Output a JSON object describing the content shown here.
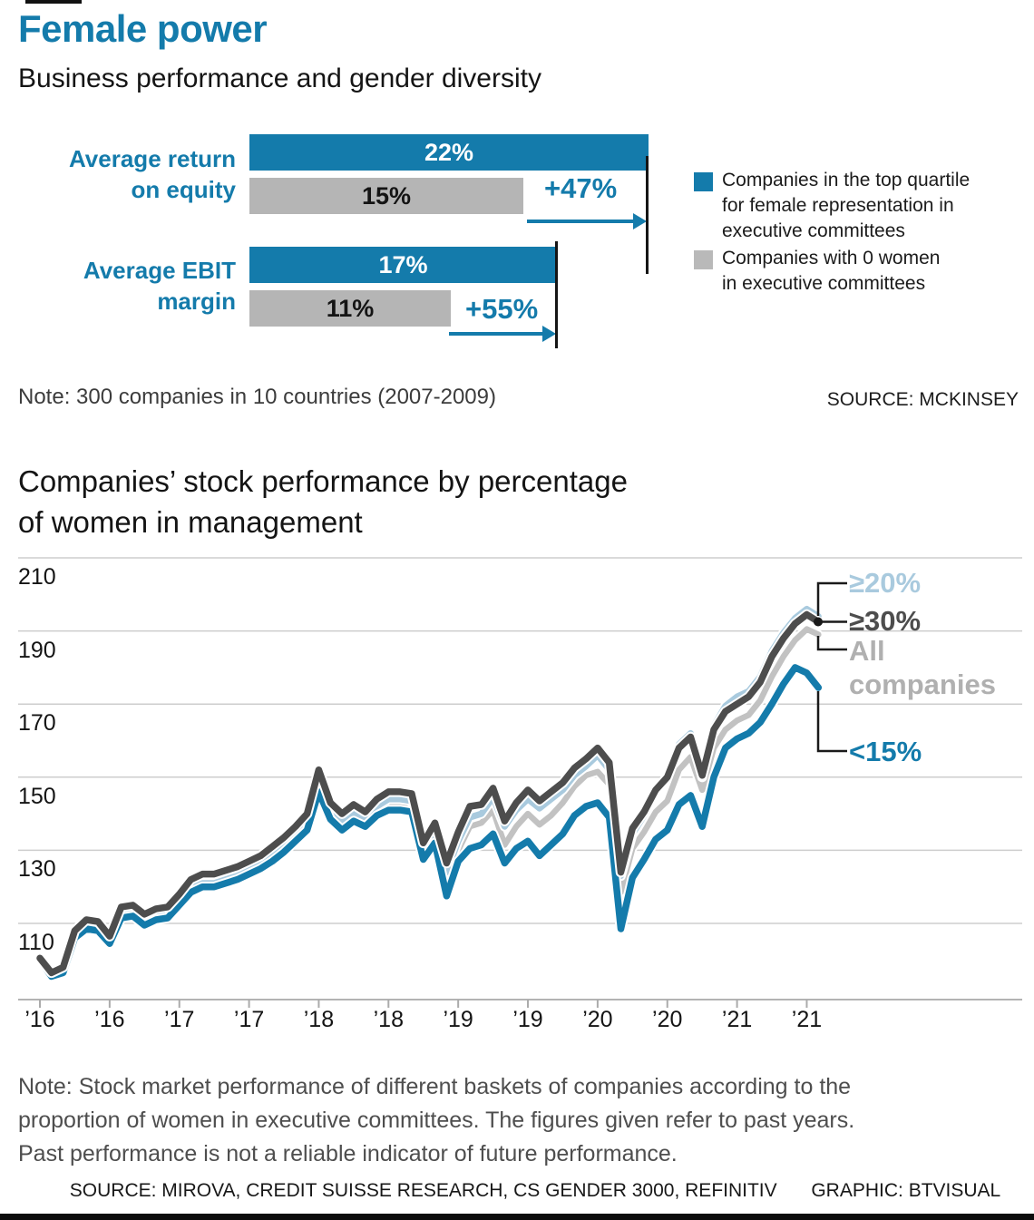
{
  "header": {
    "title": "Female power",
    "subtitle": "Business performance and gender diversity"
  },
  "bar_chart": {
    "rows": [
      {
        "label_lines": [
          "Average return",
          "on equity"
        ],
        "top_value_label": "22%",
        "zero_value_label": "15%",
        "delta_label": "+47%"
      },
      {
        "label_lines": [
          "Average EBIT",
          "margin"
        ],
        "top_value_label": "17%",
        "zero_value_label": "11%",
        "delta_label": "+55%"
      }
    ],
    "legend": [
      {
        "color": "#147bab",
        "lines": [
          "Companies in the top quartile",
          "for female representation in",
          "executive committees"
        ]
      },
      {
        "color": "#b9b9b9",
        "lines": [
          "Companies with 0 women",
          "in executive committees"
        ]
      }
    ],
    "note": "Note: 300 companies in 10 countries (2007-2009)",
    "source": "SOURCE: MCKINSEY"
  },
  "line_chart": {
    "title_lines": [
      "Companies’ stock performance by percentage",
      "of women in management"
    ],
    "y_tick_labels": [
      "210",
      "190",
      "170",
      "150",
      "130",
      "110"
    ],
    "series_labels": [
      {
        "text": "≥20%",
        "color": "#a9cade"
      },
      {
        "text": "≥30%",
        "color": "#4d4d4d"
      },
      {
        "text_lines": [
          "All",
          "companies"
        ],
        "color": "#b0b0b0"
      },
      {
        "text": "<15%",
        "color": "#147bab"
      }
    ]
  },
  "footer": {
    "note_lines": [
      "Note: Stock market performance of different baskets of companies according to the",
      "proportion of women in executive committees. The figures given refer to past years.",
      "Past performance is not a reliable indicator of future performance."
    ],
    "source": "SOURCE: MIROVA, CREDIT SUISSE RESEARCH, CS GENDER 3000, REFINITIV",
    "graphic": "GRAPHIC: BTVISUAL"
  },
  "chart_data": [
    {
      "type": "bar",
      "orientation": "horizontal",
      "title": "Business performance and gender diversity",
      "categories": [
        "Average return on equity",
        "Average EBIT margin"
      ],
      "series": [
        {
          "name": "Companies in the top quartile for female representation in executive committees",
          "color": "#147bab",
          "values": [
            22,
            17
          ]
        },
        {
          "name": "Companies with 0 women in executive committees",
          "color": "#b5b5b5",
          "values": [
            15,
            11
          ]
        }
      ],
      "value_unit": "%",
      "deltas": [
        "+47%",
        "+55%"
      ],
      "note": "300 companies in 10 countries (2007-2009)",
      "source": "MCKINSEY"
    },
    {
      "type": "line",
      "title": "Companies' stock performance by percentage of women in management",
      "x_unit": "months, Jan 2016 - Aug 2021 (semi-annual ticks)",
      "x_tick_labels": [
        "’16",
        "’16",
        "’17",
        "’17",
        "’18",
        "’18",
        "’19",
        "’19",
        "’20",
        "’20",
        "’21",
        "’21"
      ],
      "y_ticks": [
        110,
        130,
        150,
        170,
        190,
        210
      ],
      "ylim": [
        89,
        214
      ],
      "grid": "horizontal",
      "legend_position": "right-end-labels",
      "series": [
        {
          "name": "≥20%",
          "color": "#a9cade",
          "values": [
            100,
            96,
            97.5,
            107,
            109.5,
            109,
            105.5,
            112.5,
            113,
            110.5,
            112,
            112.5,
            116,
            119.5,
            121,
            121,
            122,
            123,
            124.5,
            126,
            128.5,
            131,
            134,
            137.5,
            150,
            141,
            138,
            140.5,
            138.5,
            142,
            144,
            144,
            143.5,
            130.5,
            135.5,
            124,
            132.5,
            139,
            140,
            144.5,
            136.5,
            141,
            144,
            141.5,
            144,
            146.5,
            150.5,
            153,
            156,
            152,
            123,
            134.5,
            139.5,
            146,
            150,
            159,
            162,
            150,
            164,
            169.5,
            172,
            173.5,
            177.5,
            184.5,
            189.5,
            193.5,
            196,
            194
          ]
        },
        {
          "name": "≥30%",
          "color": "#4d4d4d",
          "values": [
            100.5,
            96.5,
            98,
            108,
            111,
            110.5,
            106.5,
            114.5,
            115,
            112.5,
            114,
            114.5,
            118,
            122,
            123.5,
            123.5,
            124.5,
            125.5,
            127,
            128.5,
            131,
            133.5,
            136.5,
            140,
            152,
            143,
            140,
            142.5,
            140.5,
            144,
            146,
            146,
            145.5,
            132,
            137.5,
            126.5,
            135,
            142,
            142.5,
            147,
            138,
            143,
            146.5,
            143.5,
            146,
            148.5,
            152.5,
            155,
            158,
            154,
            124,
            136,
            140.5,
            146.5,
            150,
            158,
            161,
            150.5,
            163,
            168,
            170,
            172,
            176,
            183,
            188,
            192,
            194.5,
            192.5
          ]
        },
        {
          "name": "All companies",
          "color": "#c2c2c2",
          "values": [
            100,
            96.5,
            97,
            106.5,
            109,
            108.5,
            105,
            112,
            112.5,
            110,
            111.5,
            112,
            115.5,
            119,
            120.5,
            120.5,
            121.5,
            122.5,
            124,
            125.5,
            127.5,
            130,
            133,
            136.5,
            149,
            140.5,
            137.5,
            140,
            138,
            141.5,
            143,
            143,
            142.5,
            129.5,
            134,
            121.5,
            130,
            136.5,
            137.5,
            141,
            131.5,
            136.5,
            140,
            137,
            139.5,
            143,
            147.5,
            150.5,
            151.5,
            148,
            118.5,
            130.5,
            135,
            140.5,
            143.5,
            152,
            155.5,
            146.5,
            158,
            163,
            165.5,
            167,
            171,
            177.5,
            183,
            187.5,
            190.5,
            189
          ]
        },
        {
          "name": "<15%",
          "color": "#147bab",
          "values": [
            100,
            95.5,
            96.5,
            106,
            108.5,
            108,
            104.5,
            111.5,
            112,
            109.5,
            111,
            111.5,
            115,
            118.5,
            120,
            120,
            121,
            122,
            123.5,
            125,
            127,
            129.5,
            132.5,
            135.5,
            146,
            138.5,
            135.5,
            138,
            136.5,
            139.5,
            141,
            141,
            140.5,
            127.5,
            132,
            117.5,
            127,
            130.5,
            131.5,
            134.5,
            126.5,
            130.5,
            132.5,
            128.5,
            131.5,
            134.5,
            139.5,
            142,
            143,
            139,
            108.5,
            122.5,
            127.5,
            133,
            135.5,
            142.5,
            145,
            136.5,
            150,
            158,
            160.5,
            162,
            165,
            170,
            175.5,
            180,
            178.5,
            174.5
          ]
        }
      ]
    }
  ]
}
